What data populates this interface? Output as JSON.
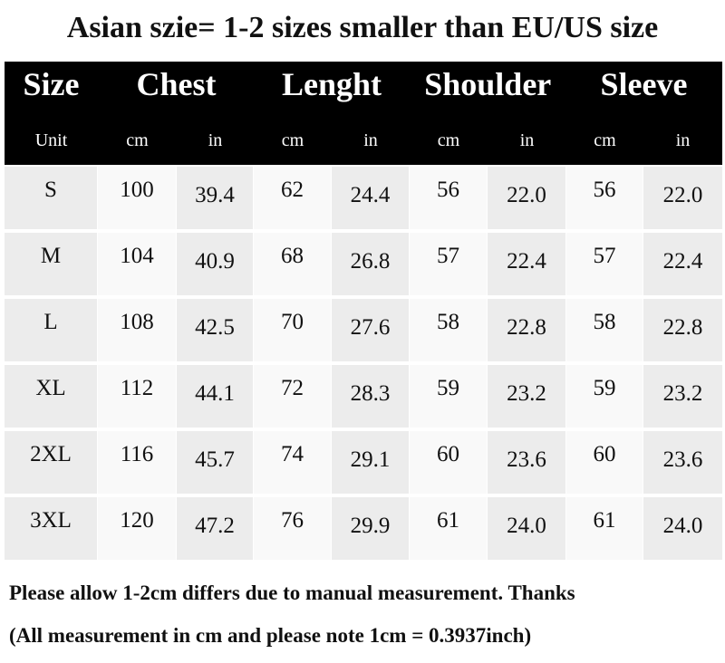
{
  "title": "Asian szie= 1-2 sizes smaller than EU/US size",
  "table": {
    "headers": [
      "Size",
      "Chest",
      "Lenght",
      "Shoulder",
      "Sleeve"
    ],
    "units": [
      "Unit",
      "cm",
      "in",
      "cm",
      "in",
      "cm",
      "in",
      "cm",
      "in"
    ],
    "rows": [
      [
        "S",
        "100",
        "39.4",
        "62",
        "24.4",
        "56",
        "22.0",
        "56",
        "22.0"
      ],
      [
        "M",
        "104",
        "40.9",
        "68",
        "26.8",
        "57",
        "22.4",
        "57",
        "22.4"
      ],
      [
        "L",
        "108",
        "42.5",
        "70",
        "27.6",
        "58",
        "22.8",
        "58",
        "22.8"
      ],
      [
        "XL",
        "112",
        "44.1",
        "72",
        "28.3",
        "59",
        "23.2",
        "59",
        "23.2"
      ],
      [
        "2XL",
        "116",
        "45.7",
        "74",
        "29.1",
        "60",
        "23.6",
        "60",
        "23.6"
      ],
      [
        "3XL",
        "120",
        "47.2",
        "76",
        "29.9",
        "61",
        "24.0",
        "61",
        "24.0"
      ]
    ]
  },
  "notes": [
    "Please allow 1-2cm differs due to manual measurement. Thanks",
    "(All measurement in cm and please note 1cm = 0.3937inch)"
  ]
}
